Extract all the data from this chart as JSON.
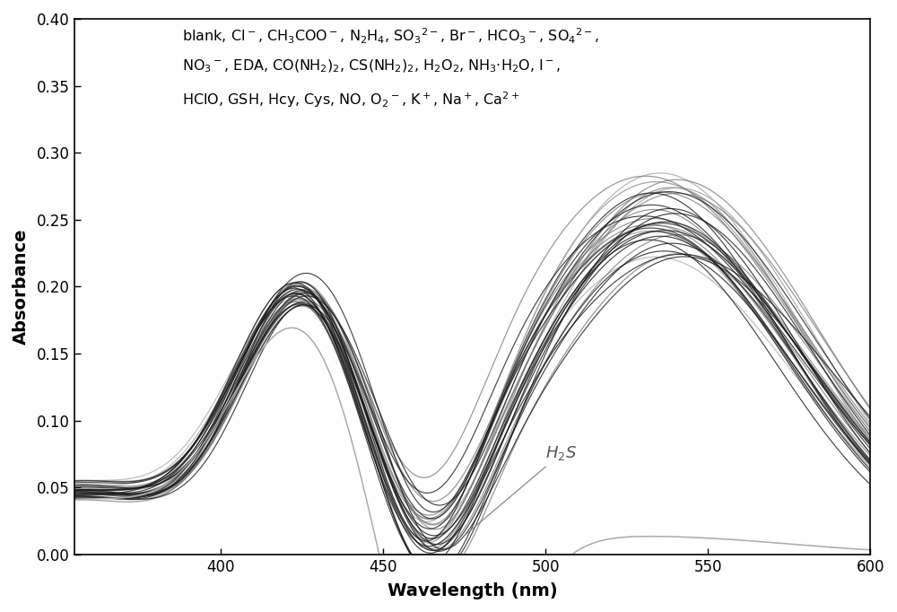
{
  "title": "",
  "xlabel": "Wavelength (nm)",
  "ylabel": "Absorbance",
  "xlim": [
    355,
    600
  ],
  "ylim": [
    0.0,
    0.4
  ],
  "yticks": [
    0.0,
    0.05,
    0.1,
    0.15,
    0.2,
    0.25,
    0.3,
    0.35,
    0.4
  ],
  "xticks": [
    400,
    450,
    500,
    550,
    600
  ],
  "background_color": "#ffffff",
  "h2s_label": "H$_2$S"
}
